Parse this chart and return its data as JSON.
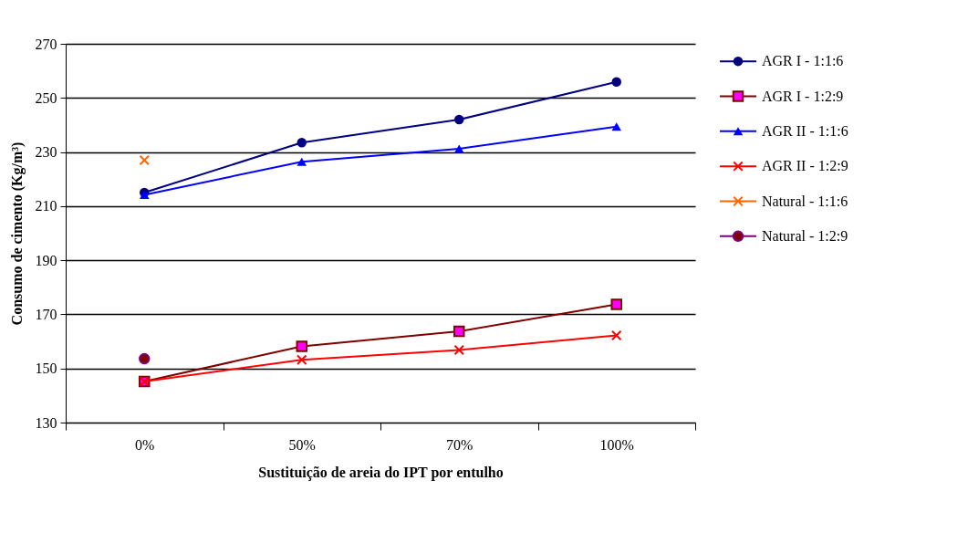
{
  "chart_data": {
    "type": "line",
    "xlabel": "Sustituição de areia do IPT por entulho",
    "ylabel": "Consumo de cimento (Kg/m³)",
    "categories": [
      "0%",
      "50%",
      "70%",
      "100%"
    ],
    "ylim": [
      130,
      270
    ],
    "yticks": [
      130,
      150,
      170,
      190,
      210,
      230,
      250,
      270
    ],
    "grid": "y",
    "legend": "right",
    "series": [
      {
        "name": "AGR I - 1:1:6",
        "color": "#000080",
        "marker": "circle",
        "values": [
          215,
          233.5,
          242,
          255.9
        ]
      },
      {
        "name": "AGR I - 1:2:9",
        "color": "#800000",
        "colors": [
          "#ff00ff",
          "#ff00ff",
          "#ff00ff",
          "#ff00ff"
        ],
        "marker": "square",
        "values": [
          145.2,
          158.2,
          163.7,
          173.7
        ]
      },
      {
        "name": "AGR II - 1:1:6",
        "color": "#0000ff",
        "marker": "triangle",
        "values": [
          214.2,
          226.4,
          231.2,
          239.4
        ]
      },
      {
        "name": "AGR II - 1:2:9",
        "color": "#ff0000",
        "marker": "cross",
        "values": [
          145.2,
          153.2,
          156.8,
          162.2
        ]
      },
      {
        "name": "Natural - 1:1:6",
        "color": "#ff6600",
        "marker": "cross",
        "values": [
          227,
          null,
          null,
          null
        ]
      },
      {
        "name": "Natural - 1:2:9",
        "color": "#800080",
        "colors": [
          "#800000",
          null,
          null,
          null
        ],
        "marker": "circle",
        "values": [
          153.6,
          null,
          null,
          null
        ]
      }
    ]
  }
}
